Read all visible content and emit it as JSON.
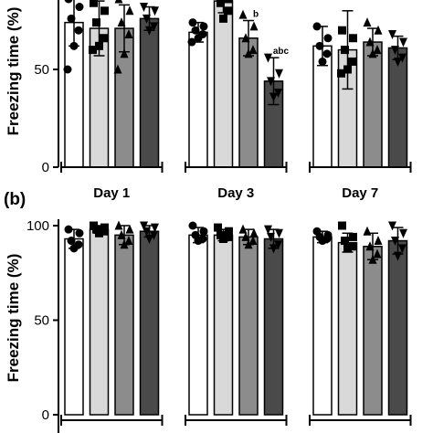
{
  "chart_data": [
    {
      "type": "bar",
      "panel_label": "",
      "ylabel": "Freezing time (%)",
      "yticks": [
        0,
        50
      ],
      "ylim": [
        0,
        100
      ],
      "groups": [
        "Day 1",
        "Day 3",
        "Day 7"
      ],
      "bar_colors": [
        "#ffffff",
        "#d9d9d9",
        "#8c8c8c",
        "#4a4a4a"
      ],
      "markers": [
        "circle",
        "square",
        "triangle-up",
        "triangle-down"
      ],
      "bars": [
        {
          "group": 0,
          "value": 74,
          "error": 12,
          "points": [
            86,
            82,
            76,
            70,
            62,
            50
          ]
        },
        {
          "group": 0,
          "value": 71,
          "error": 14,
          "points": [
            84,
            80,
            74,
            66,
            62,
            60
          ]
        },
        {
          "group": 0,
          "value": 71,
          "error": 12,
          "points": [
            86,
            80,
            74,
            68,
            58,
            50
          ]
        },
        {
          "group": 0,
          "value": 76,
          "error": 6,
          "points": [
            82,
            80,
            76,
            72,
            70
          ]
        },
        {
          "group": 1,
          "value": 69,
          "error": 5,
          "points": [
            74,
            72,
            70,
            68,
            66,
            64
          ]
        },
        {
          "group": 1,
          "value": 85,
          "error": 6,
          "points": [
            90,
            86,
            84,
            80,
            76
          ]
        },
        {
          "group": 1,
          "value": 66,
          "error": 9,
          "points": [
            78,
            72,
            66,
            60,
            58
          ]
        },
        {
          "group": 1,
          "value": 44,
          "error": 12,
          "points": [
            56,
            48,
            44,
            38,
            36
          ]
        },
        {
          "group": 2,
          "value": 62,
          "error": 10,
          "points": [
            72,
            66,
            62,
            58,
            54
          ]
        },
        {
          "group": 2,
          "value": 60,
          "error": 20,
          "points": [
            70,
            66,
            60,
            54,
            50,
            48
          ]
        },
        {
          "group": 2,
          "value": 64,
          "error": 7,
          "points": [
            74,
            70,
            64,
            60,
            58
          ]
        },
        {
          "group": 2,
          "value": 61,
          "error": 6,
          "points": [
            68,
            64,
            60,
            56,
            54
          ]
        }
      ],
      "annotations": [
        {
          "bar": 6,
          "text": "b"
        },
        {
          "bar": 7,
          "text": "abc"
        }
      ]
    },
    {
      "type": "bar",
      "panel_label": "(b)",
      "ylabel": "Freezing time (%)",
      "yticks": [
        0,
        50,
        100
      ],
      "ylim": [
        0,
        100
      ],
      "groups": [
        "",
        "",
        ""
      ],
      "bar_colors": [
        "#ffffff",
        "#d9d9d9",
        "#8c8c8c",
        "#4a4a4a"
      ],
      "markers": [
        "circle",
        "square",
        "triangle-up",
        "triangle-down"
      ],
      "bars": [
        {
          "group": 0,
          "value": 93,
          "error": 5,
          "points": [
            98,
            96,
            92,
            90,
            88
          ]
        },
        {
          "group": 0,
          "value": 98,
          "error": 2,
          "points": [
            100,
            99,
            98,
            97,
            96
          ]
        },
        {
          "group": 0,
          "value": 95,
          "error": 5,
          "points": [
            100,
            98,
            95,
            92,
            90
          ]
        },
        {
          "group": 0,
          "value": 97,
          "error": 3,
          "points": [
            100,
            99,
            97,
            95,
            93
          ]
        },
        {
          "group": 1,
          "value": 95,
          "error": 4,
          "points": [
            100,
            97,
            95,
            93,
            92
          ]
        },
        {
          "group": 1,
          "value": 95,
          "error": 3,
          "points": [
            99,
            97,
            95,
            94,
            93
          ]
        },
        {
          "group": 1,
          "value": 94,
          "error": 4,
          "points": [
            98,
            96,
            94,
            92,
            90
          ]
        },
        {
          "group": 1,
          "value": 93,
          "error": 5,
          "points": [
            98,
            96,
            94,
            90,
            88
          ]
        },
        {
          "group": 2,
          "value": 94,
          "error": 3,
          "points": [
            97,
            95,
            94,
            93,
            92
          ]
        },
        {
          "group": 2,
          "value": 91,
          "error": 5,
          "points": [
            100,
            94,
            92,
            89,
            88
          ]
        },
        {
          "group": 2,
          "value": 89,
          "error": 7,
          "points": [
            97,
            92,
            89,
            85,
            82
          ]
        },
        {
          "group": 2,
          "value": 92,
          "error": 7,
          "points": [
            100,
            96,
            92,
            88,
            84
          ]
        }
      ],
      "annotations": []
    }
  ]
}
